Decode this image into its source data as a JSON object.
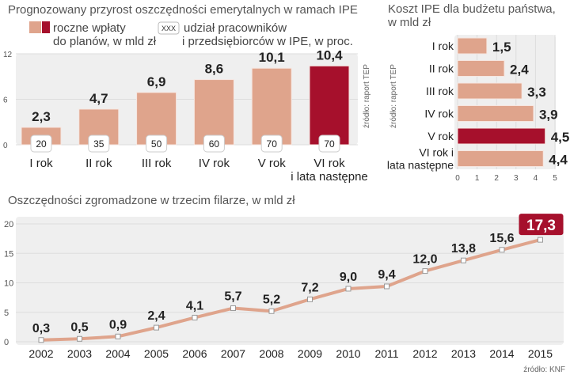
{
  "chart_data": [
    {
      "type": "bar",
      "title": "Prognozowany przyrost oszczędności emerytalnych w ramach IPE",
      "legend": [
        {
          "label": "roczne wpłaty do planów, w mld zł",
          "line1": "roczne wpłaty",
          "line2": "do planów, w mld zł"
        },
        {
          "marker": "XXX",
          "label": "udział pracowników i przedsiębiorców w IPE, w proc.",
          "line1": "udział pracowników",
          "line2": "i przedsiębiorców w IPE, w proc."
        }
      ],
      "categories": [
        "I rok",
        "II rok",
        "III rok",
        "IV rok",
        "V rok",
        "VI rok i lata następne"
      ],
      "category_lines": [
        [
          "I rok"
        ],
        [
          "II rok"
        ],
        [
          "III rok"
        ],
        [
          "IV rok"
        ],
        [
          "V rok"
        ],
        [
          "VI rok",
          "i lata następne"
        ]
      ],
      "values": [
        2.3,
        4.7,
        6.9,
        8.6,
        10.1,
        10.4
      ],
      "value_labels": [
        "2,3",
        "4,7",
        "6,9",
        "8,6",
        "10,1",
        "10,4"
      ],
      "share_pct": [
        20,
        35,
        50,
        60,
        70,
        70
      ],
      "highlight_index": 5,
      "ylim": [
        0,
        12
      ],
      "yticks": [
        "0",
        "6",
        "12"
      ],
      "grid": true,
      "source": "źródło: raport TEP"
    },
    {
      "type": "bar",
      "orientation": "horizontal",
      "title": "Koszt IPE dla budżetu państwa,",
      "title2": "w mld zł",
      "categories": [
        "I rok",
        "II rok",
        "III rok",
        "IV rok",
        "V rok",
        "VI rok i lata następne"
      ],
      "category_lines": [
        [
          "I rok"
        ],
        [
          "II rok"
        ],
        [
          "III rok"
        ],
        [
          "IV rok"
        ],
        [
          "V rok"
        ],
        [
          "VI rok i",
          "lata następne"
        ]
      ],
      "values": [
        1.5,
        2.4,
        3.3,
        3.9,
        4.5,
        4.4
      ],
      "value_labels": [
        "1,5",
        "2,4",
        "3,3",
        "3,9",
        "4,5",
        "4,4"
      ],
      "highlight_index": 4,
      "xlim": [
        0,
        5
      ],
      "xticks": [
        "0",
        "1",
        "2",
        "3",
        "4",
        "5"
      ],
      "grid": true,
      "source": "źródło: raport TEP"
    },
    {
      "type": "line",
      "title": "Oszczędności zgromadzone w trzecim filarze, w mld zł",
      "x": [
        "2002",
        "2003",
        "2004",
        "2005",
        "2006",
        "2007",
        "2008",
        "2009",
        "2010",
        "2011",
        "2012",
        "2013",
        "2014",
        "2015"
      ],
      "values": [
        0.3,
        0.5,
        0.9,
        2.4,
        4.1,
        5.7,
        5.2,
        7.2,
        9.0,
        9.4,
        12.0,
        13.8,
        15.6,
        17.3
      ],
      "value_labels": [
        "0,3",
        "0,5",
        "0,9",
        "2,4",
        "4,1",
        "5,7",
        "5,2",
        "7,2",
        "9,0",
        "9,4",
        "12,0",
        "13,8",
        "15,6",
        "17,3"
      ],
      "highlight_index": 13,
      "ylim": [
        0,
        20
      ],
      "yticks": [
        "0",
        "5",
        "10",
        "15",
        "20"
      ],
      "grid": true,
      "source": "źródło: KNF"
    }
  ],
  "colors": {
    "bar": "#dfa48c",
    "highlight": "#a6102c",
    "plot_bg": "#efefef",
    "line": "#dfa48c",
    "text": "#222222"
  }
}
